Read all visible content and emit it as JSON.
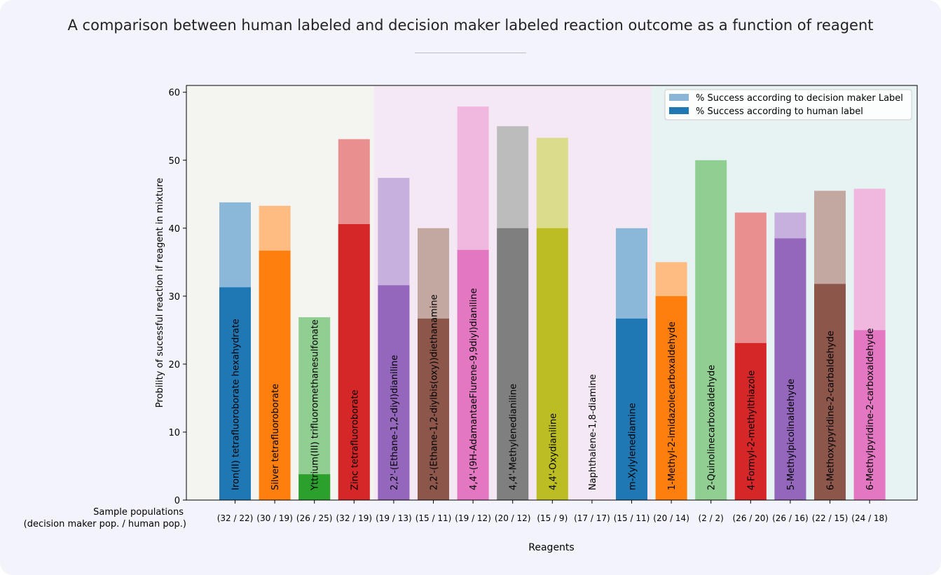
{
  "page": {
    "title": "A comparison between human labeled and decision maker labeled reaction outcome as a function of reagent"
  },
  "chart_data": {
    "type": "bar",
    "title": "A comparison between human labeled and decision maker labeled reaction outcome as a function of reagent",
    "xlabel": "Reagents",
    "ylabel": "Probility of sucessful reaction if reagent in mixture",
    "ylim": [
      0,
      61
    ],
    "yticks": [
      0,
      10,
      20,
      30,
      40,
      50,
      60
    ],
    "grid": false,
    "legend_position": "top-right",
    "legend": [
      "% Success according to decision maker Label",
      "% Success according to human label"
    ],
    "population_label_line1": "Sample populations",
    "population_label_line2": "(decision maker pop. / human pop.)",
    "categories": [
      "Iron(II) tetrafluoroborate hexahydrate",
      "Silver tetrafluoroborate",
      "Yttrium(III) trifluoromethanesulfonate",
      "Zinc tetrafluoroborate",
      "2,2'-(Ethane-1,2-diyl)dianiline",
      "2,2'-(Ethane-1,2-diylbis(oxy))diethanamine",
      "4,4'-(9H-AdamantaeFlurene-9,9diyl)dianiline",
      "4,4'-Methylenedianiline",
      "4,4'-Oxydianiline",
      "Naphthalene-1,8-diamine",
      "m-Xylylenediamine",
      "1-Methyl-2-imidazolecarboxaldehyde",
      "2-Quinolinecarboxaldehyde",
      "4-Formyl-2-methylthiazole",
      "5-Methylpicolinaldehyde",
      "6-Methoxypyridine-2-carbaldehyde",
      "6-Methylpyridine-2-carboxaldehyde"
    ],
    "populations": [
      "(32 / 22)",
      "(30 / 19)",
      "(26 / 25)",
      "(32 / 19)",
      "(19 / 13)",
      "(15 / 11)",
      "(19 / 12)",
      "(20 / 12)",
      "(15 / 9)",
      "(17 / 17)",
      "(15 / 11)",
      "(20 / 14)",
      "(2 / 2)",
      "(26 / 20)",
      "(26 / 16)",
      "(22 / 15)",
      "(24 / 18)"
    ],
    "series": [
      {
        "name": "% Success according to decision maker Label",
        "values": [
          43.8,
          43.3,
          26.9,
          53.1,
          47.4,
          40.0,
          57.9,
          55.0,
          53.3,
          0,
          40.0,
          35.0,
          50.0,
          42.3,
          42.3,
          45.5,
          45.8
        ]
      },
      {
        "name": "% Success according to human label",
        "values": [
          31.3,
          36.7,
          3.8,
          40.6,
          31.6,
          26.7,
          36.8,
          40.0,
          40.0,
          0,
          26.7,
          30.0,
          0,
          23.1,
          38.5,
          31.8,
          25.0
        ]
      }
    ],
    "bar_colors": [
      "#1f77b4",
      "#ff7f0e",
      "#2ca02c",
      "#d62728",
      "#9467bd",
      "#8c564b",
      "#e377c2",
      "#7f7f7f",
      "#bcbd22",
      "#17becf",
      "#1f77b4",
      "#ff7f0e",
      "#2ca02c",
      "#d62728",
      "#9467bd",
      "#8c564b",
      "#e377c2"
    ],
    "legend_colors": [
      "#8ab5d6",
      "#1f77b4"
    ],
    "regions": [
      {
        "from": 0,
        "to": 3,
        "color": "#f4f4f1"
      },
      {
        "from": 4,
        "to": 10,
        "color": "#f3e8f3"
      },
      {
        "from": 11,
        "to": 16,
        "color": "#e6f3f2"
      }
    ]
  }
}
